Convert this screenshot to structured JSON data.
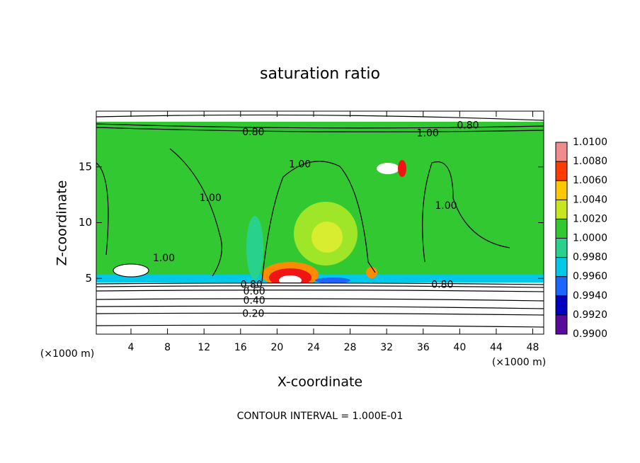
{
  "chart_data": {
    "type": "contour",
    "title": "saturation ratio",
    "x_label": "X-coordinate",
    "y_label": "Z-coordinate",
    "x_unit_left": "(×1000 m)",
    "x_unit_right": "(×1000 m)",
    "footer": "CONTOUR INTERVAL = 1.000E-01",
    "xlim": [
      0.2,
      49.2
    ],
    "ylim": [
      0,
      20
    ],
    "xticks": [
      4,
      8,
      12,
      16,
      20,
      24,
      28,
      32,
      36,
      40,
      44,
      48
    ],
    "yticks": [
      5,
      10,
      15
    ],
    "colorbar_ticks": [
      {
        "value": 0.99,
        "label": "0.9900"
      },
      {
        "value": 0.992,
        "label": "0.9920"
      },
      {
        "value": 0.994,
        "label": "0.9940"
      },
      {
        "value": 0.996,
        "label": "0.9960"
      },
      {
        "value": 0.998,
        "label": "0.9980"
      },
      {
        "value": 1.0,
        "label": "1.0000"
      },
      {
        "value": 1.002,
        "label": "1.0020"
      },
      {
        "value": 1.004,
        "label": "1.0040"
      },
      {
        "value": 1.006,
        "label": "1.0060"
      },
      {
        "value": 1.008,
        "label": "1.0080"
      },
      {
        "value": 1.01,
        "label": "1.0100"
      }
    ],
    "colors": [
      "#5a0a9a",
      "#0000c0",
      "#1e64ff",
      "#00c8e6",
      "#28d28c",
      "#32c832",
      "#c8e61e",
      "#ffc800",
      "#ff3c00",
      "#f08c8c"
    ],
    "contour_labels": [
      {
        "value": 0.8,
        "label": "0.80",
        "x": 17.4,
        "y": 18.1
      },
      {
        "value": 1.0,
        "label": "1.00",
        "x": 36.5,
        "y": 18.0
      },
      {
        "value": 0.8,
        "label": "0.80",
        "x": 40.9,
        "y": 18.7
      },
      {
        "value": 1.0,
        "label": "1.00",
        "x": 22.5,
        "y": 15.2
      },
      {
        "value": 1.0,
        "label": "1.00",
        "x": 12.7,
        "y": 12.2
      },
      {
        "value": 1.0,
        "label": "1.00",
        "x": 38.5,
        "y": 11.5
      },
      {
        "value": 1.0,
        "label": "1.00",
        "x": 7.6,
        "y": 6.8
      },
      {
        "value": 0.8,
        "label": "0.80",
        "x": 17.2,
        "y": 4.4
      },
      {
        "value": 0.6,
        "label": "0.60",
        "x": 17.5,
        "y": 3.8
      },
      {
        "value": 0.4,
        "label": "0.40",
        "x": 17.5,
        "y": 3.0
      },
      {
        "value": 0.2,
        "label": "0.20",
        "x": 17.4,
        "y": 1.8
      },
      {
        "value": 0.8,
        "label": "0.80",
        "x": 38.1,
        "y": 4.4
      }
    ]
  }
}
